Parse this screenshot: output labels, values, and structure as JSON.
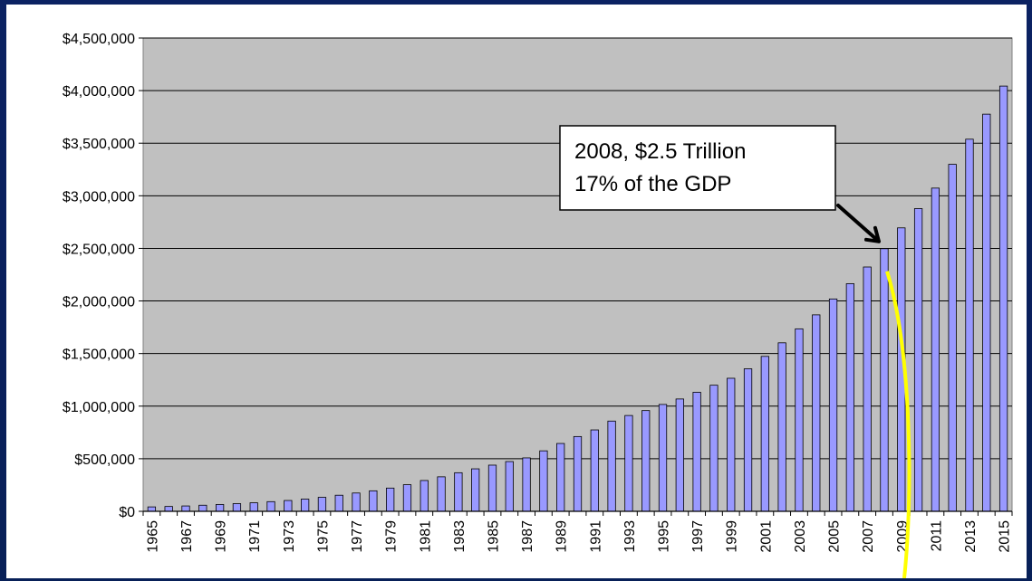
{
  "chart_data": {
    "type": "bar",
    "title": "",
    "xlabel": "",
    "ylabel": "",
    "ylim": [
      0,
      4500000
    ],
    "yticks": [
      0,
      500000,
      1000000,
      1500000,
      2000000,
      2500000,
      3000000,
      3500000,
      4000000,
      4500000
    ],
    "ytick_labels": [
      "$0",
      "$500,000",
      "$1,000,000",
      "$1,500,000",
      "$2,000,000",
      "$2,500,000",
      "$3,000,000",
      "$3,500,000",
      "$4,000,000",
      "$4,500,000"
    ],
    "categories": [
      "1965",
      "1966",
      "1967",
      "1968",
      "1969",
      "1970",
      "1971",
      "1972",
      "1973",
      "1974",
      "1975",
      "1976",
      "1977",
      "1978",
      "1979",
      "1980",
      "1981",
      "1982",
      "1983",
      "1984",
      "1985",
      "1986",
      "1987",
      "1988",
      "1989",
      "1990",
      "1991",
      "1992",
      "1993",
      "1994",
      "1995",
      "1996",
      "1997",
      "1998",
      "1999",
      "2000",
      "2001",
      "2002",
      "2003",
      "2004",
      "2005",
      "2006",
      "2007",
      "2008",
      "2009",
      "2010",
      "2011",
      "2012",
      "2013",
      "2014",
      "2015"
    ],
    "xtick_labels": [
      "1965",
      "",
      "1967",
      "",
      "1969",
      "",
      "1971",
      "",
      "1973",
      "",
      "1975",
      "",
      "1977",
      "",
      "1979",
      "",
      "1981",
      "",
      "1983",
      "",
      "1985",
      "",
      "1987",
      "",
      "1989",
      "",
      "1991",
      "",
      "1993",
      "",
      "1995",
      "",
      "1997",
      "",
      "1999",
      "",
      "2001",
      "",
      "2003",
      "",
      "2005",
      "",
      "2007",
      "",
      "2009",
      "",
      "2011",
      "",
      "2013",
      "",
      "2015"
    ],
    "values": [
      42000,
      46000,
      51000,
      58000,
      65000,
      73000,
      81000,
      92000,
      103000,
      116000,
      133000,
      153000,
      174000,
      195000,
      221000,
      253000,
      293000,
      328000,
      367000,
      404000,
      439000,
      473000,
      508000,
      575000,
      645000,
      711000,
      774000,
      858000,
      911000,
      958000,
      1016000,
      1068000,
      1132000,
      1199000,
      1265000,
      1355000,
      1473000,
      1602000,
      1735000,
      1868000,
      2019000,
      2164000,
      2323000,
      2497000,
      2695000,
      2878000,
      3073000,
      3299000,
      3538000,
      3776000,
      4043000
    ],
    "grid": true,
    "legend": "none",
    "colors": {
      "bar_fill": "#9999ff",
      "bar_stroke": "#000000",
      "plot_bg": "#c0c0c0",
      "outer_bg": "#0b2262",
      "highlight_line": "#ffff00"
    },
    "annotation": {
      "lines": [
        "2008, $2.5 Trillion",
        "17% of the GDP"
      ],
      "target_category": "2008"
    }
  }
}
